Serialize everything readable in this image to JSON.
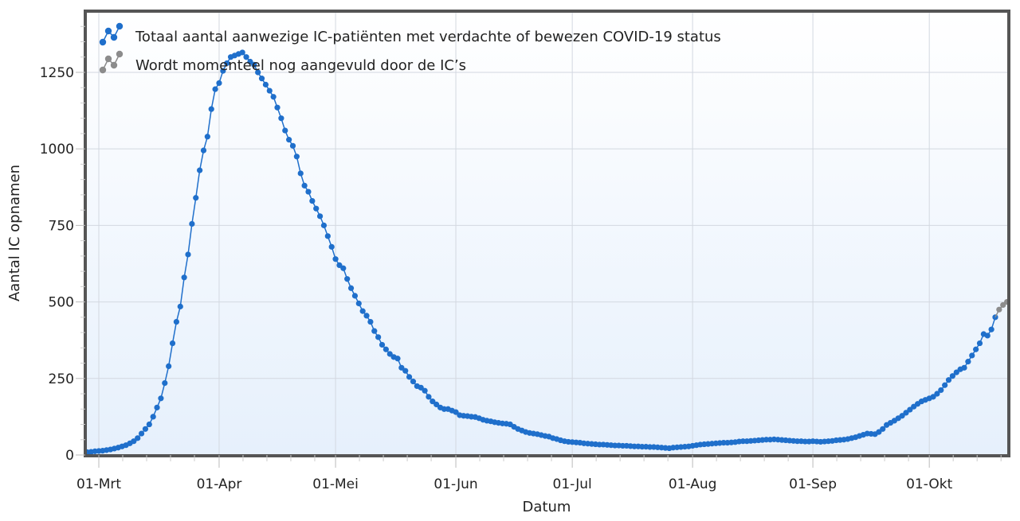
{
  "chart_data": {
    "type": "line",
    "title": "",
    "xlabel": "Datum",
    "ylabel": "Aantal IC opnamen",
    "ylim": [
      0,
      1450
    ],
    "yticks": [
      0,
      250,
      500,
      750,
      1000,
      1250
    ],
    "xticks": [
      {
        "date": "03-01",
        "label": "01-Mrt"
      },
      {
        "date": "04-01",
        "label": "01-Apr"
      },
      {
        "date": "05-01",
        "label": "01-Mei"
      },
      {
        "date": "06-01",
        "label": "01-Jun"
      },
      {
        "date": "07-01",
        "label": "01-Jul"
      },
      {
        "date": "08-01",
        "label": "01-Aug"
      },
      {
        "date": "09-01",
        "label": "01-Sep"
      },
      {
        "date": "10-01",
        "label": "01-Okt"
      }
    ],
    "grid": true,
    "legend_position": "top-left",
    "series": [
      {
        "name": "Totaal aantal aanwezige IC-patiënten met verdachte of bewezen COVID-19 status",
        "color": "#1f6fcb",
        "points": [
          [
            "02-27",
            9
          ],
          [
            "02-28",
            10
          ],
          [
            "02-29",
            12
          ],
          [
            "03-01",
            13
          ],
          [
            "03-02",
            14
          ],
          [
            "03-03",
            16
          ],
          [
            "03-04",
            18
          ],
          [
            "03-05",
            21
          ],
          [
            "03-06",
            24
          ],
          [
            "03-07",
            28
          ],
          [
            "03-08",
            32
          ],
          [
            "03-09",
            38
          ],
          [
            "03-10",
            45
          ],
          [
            "03-11",
            55
          ],
          [
            "03-12",
            70
          ],
          [
            "03-13",
            85
          ],
          [
            "03-14",
            100
          ],
          [
            "03-15",
            125
          ],
          [
            "03-16",
            155
          ],
          [
            "03-17",
            185
          ],
          [
            "03-18",
            235
          ],
          [
            "03-19",
            290
          ],
          [
            "03-20",
            365
          ],
          [
            "03-21",
            435
          ],
          [
            "03-22",
            485
          ],
          [
            "03-23",
            580
          ],
          [
            "03-24",
            655
          ],
          [
            "03-25",
            755
          ],
          [
            "03-26",
            840
          ],
          [
            "03-27",
            930
          ],
          [
            "03-28",
            995
          ],
          [
            "03-29",
            1040
          ],
          [
            "03-30",
            1130
          ],
          [
            "03-31",
            1195
          ],
          [
            "04-01",
            1215
          ],
          [
            "04-02",
            1255
          ],
          [
            "04-03",
            1280
          ],
          [
            "04-04",
            1300
          ],
          [
            "04-05",
            1305
          ],
          [
            "04-06",
            1310
          ],
          [
            "04-07",
            1315
          ],
          [
            "04-08",
            1300
          ],
          [
            "04-09",
            1285
          ],
          [
            "04-10",
            1275
          ],
          [
            "04-11",
            1250
          ],
          [
            "04-12",
            1230
          ],
          [
            "04-13",
            1210
          ],
          [
            "04-14",
            1190
          ],
          [
            "04-15",
            1170
          ],
          [
            "04-16",
            1135
          ],
          [
            "04-17",
            1100
          ],
          [
            "04-18",
            1060
          ],
          [
            "04-19",
            1030
          ],
          [
            "04-20",
            1010
          ],
          [
            "04-21",
            975
          ],
          [
            "04-22",
            920
          ],
          [
            "04-23",
            880
          ],
          [
            "04-24",
            860
          ],
          [
            "04-25",
            830
          ],
          [
            "04-26",
            805
          ],
          [
            "04-27",
            780
          ],
          [
            "04-28",
            750
          ],
          [
            "04-29",
            715
          ],
          [
            "04-30",
            680
          ],
          [
            "05-01",
            640
          ],
          [
            "05-02",
            620
          ],
          [
            "05-03",
            610
          ],
          [
            "05-04",
            575
          ],
          [
            "05-05",
            545
          ],
          [
            "05-06",
            520
          ],
          [
            "05-07",
            495
          ],
          [
            "05-08",
            470
          ],
          [
            "05-09",
            455
          ],
          [
            "05-10",
            435
          ],
          [
            "05-11",
            405
          ],
          [
            "05-12",
            385
          ],
          [
            "05-13",
            360
          ],
          [
            "05-14",
            345
          ],
          [
            "05-15",
            330
          ],
          [
            "05-16",
            320
          ],
          [
            "05-17",
            315
          ],
          [
            "05-18",
            285
          ],
          [
            "05-19",
            275
          ],
          [
            "05-20",
            255
          ],
          [
            "05-21",
            240
          ],
          [
            "05-22",
            225
          ],
          [
            "05-23",
            220
          ],
          [
            "05-24",
            210
          ],
          [
            "05-25",
            190
          ],
          [
            "05-26",
            175
          ],
          [
            "05-27",
            165
          ],
          [
            "05-28",
            155
          ],
          [
            "05-29",
            150
          ],
          [
            "05-30",
            150
          ],
          [
            "05-31",
            145
          ],
          [
            "06-01",
            140
          ],
          [
            "06-02",
            130
          ],
          [
            "06-03",
            128
          ],
          [
            "06-04",
            127
          ],
          [
            "06-05",
            125
          ],
          [
            "06-06",
            124
          ],
          [
            "06-07",
            120
          ],
          [
            "06-08",
            115
          ],
          [
            "06-09",
            112
          ],
          [
            "06-10",
            110
          ],
          [
            "06-11",
            107
          ],
          [
            "06-12",
            105
          ],
          [
            "06-13",
            103
          ],
          [
            "06-14",
            102
          ],
          [
            "06-15",
            100
          ],
          [
            "06-16",
            92
          ],
          [
            "06-17",
            85
          ],
          [
            "06-18",
            80
          ],
          [
            "06-19",
            75
          ],
          [
            "06-20",
            72
          ],
          [
            "06-21",
            70
          ],
          [
            "06-22",
            68
          ],
          [
            "06-23",
            65
          ],
          [
            "06-24",
            62
          ],
          [
            "06-25",
            60
          ],
          [
            "06-26",
            55
          ],
          [
            "06-27",
            52
          ],
          [
            "06-28",
            48
          ],
          [
            "06-29",
            45
          ],
          [
            "06-30",
            43
          ],
          [
            "07-01",
            42
          ],
          [
            "07-02",
            41
          ],
          [
            "07-03",
            40
          ],
          [
            "07-04",
            38
          ],
          [
            "07-05",
            37
          ],
          [
            "07-06",
            36
          ],
          [
            "07-07",
            35
          ],
          [
            "07-08",
            34
          ],
          [
            "07-09",
            34
          ],
          [
            "07-10",
            33
          ],
          [
            "07-11",
            32
          ],
          [
            "07-12",
            31
          ],
          [
            "07-13",
            31
          ],
          [
            "07-14",
            30
          ],
          [
            "07-15",
            30
          ],
          [
            "07-16",
            29
          ],
          [
            "07-17",
            28
          ],
          [
            "07-18",
            28
          ],
          [
            "07-19",
            27
          ],
          [
            "07-20",
            27
          ],
          [
            "07-21",
            26
          ],
          [
            "07-22",
            26
          ],
          [
            "07-23",
            25
          ],
          [
            "07-24",
            24
          ],
          [
            "07-25",
            23
          ],
          [
            "07-26",
            22
          ],
          [
            "07-27",
            24
          ],
          [
            "07-28",
            25
          ],
          [
            "07-29",
            26
          ],
          [
            "07-30",
            27
          ],
          [
            "07-31",
            28
          ],
          [
            "08-01",
            30
          ],
          [
            "08-02",
            32
          ],
          [
            "08-03",
            34
          ],
          [
            "08-04",
            35
          ],
          [
            "08-05",
            36
          ],
          [
            "08-06",
            37
          ],
          [
            "08-07",
            38
          ],
          [
            "08-08",
            39
          ],
          [
            "08-09",
            40
          ],
          [
            "08-10",
            40
          ],
          [
            "08-11",
            41
          ],
          [
            "08-12",
            42
          ],
          [
            "08-13",
            44
          ],
          [
            "08-14",
            45
          ],
          [
            "08-15",
            45
          ],
          [
            "08-16",
            46
          ],
          [
            "08-17",
            47
          ],
          [
            "08-18",
            48
          ],
          [
            "08-19",
            49
          ],
          [
            "08-20",
            50
          ],
          [
            "08-21",
            50
          ],
          [
            "08-22",
            51
          ],
          [
            "08-23",
            50
          ],
          [
            "08-24",
            49
          ],
          [
            "08-25",
            48
          ],
          [
            "08-26",
            47
          ],
          [
            "08-27",
            46
          ],
          [
            "08-28",
            45
          ],
          [
            "08-29",
            45
          ],
          [
            "08-30",
            44
          ],
          [
            "08-31",
            44
          ],
          [
            "09-01",
            45
          ],
          [
            "09-02",
            44
          ],
          [
            "09-03",
            43
          ],
          [
            "09-04",
            44
          ],
          [
            "09-05",
            45
          ],
          [
            "09-06",
            46
          ],
          [
            "09-07",
            48
          ],
          [
            "09-08",
            49
          ],
          [
            "09-09",
            50
          ],
          [
            "09-10",
            52
          ],
          [
            "09-11",
            55
          ],
          [
            "09-12",
            58
          ],
          [
            "09-13",
            62
          ],
          [
            "09-14",
            66
          ],
          [
            "09-15",
            70
          ],
          [
            "09-16",
            69
          ],
          [
            "09-17",
            68
          ],
          [
            "09-18",
            75
          ],
          [
            "09-19",
            85
          ],
          [
            "09-20",
            98
          ],
          [
            "09-21",
            105
          ],
          [
            "09-22",
            112
          ],
          [
            "09-23",
            120
          ],
          [
            "09-24",
            128
          ],
          [
            "09-25",
            138
          ],
          [
            "09-26",
            148
          ],
          [
            "09-27",
            158
          ],
          [
            "09-28",
            167
          ],
          [
            "09-29",
            175
          ],
          [
            "09-30",
            180
          ],
          [
            "10-01",
            185
          ],
          [
            "10-02",
            190
          ],
          [
            "10-03",
            200
          ],
          [
            "10-04",
            212
          ],
          [
            "10-05",
            228
          ],
          [
            "10-06",
            245
          ],
          [
            "10-07",
            258
          ],
          [
            "10-08",
            270
          ],
          [
            "10-09",
            280
          ],
          [
            "10-10",
            285
          ],
          [
            "10-11",
            305
          ],
          [
            "10-12",
            325
          ],
          [
            "10-13",
            345
          ],
          [
            "10-14",
            365
          ],
          [
            "10-15",
            395
          ],
          [
            "10-16",
            390
          ],
          [
            "10-17",
            410
          ],
          [
            "10-18",
            450
          ]
        ]
      },
      {
        "name": "Wordt momenteel nog aangevuld door de IC’s",
        "color": "#8c8c8c",
        "points": [
          [
            "10-19",
            475
          ],
          [
            "10-20",
            490
          ],
          [
            "10-21",
            500
          ]
        ]
      }
    ]
  }
}
